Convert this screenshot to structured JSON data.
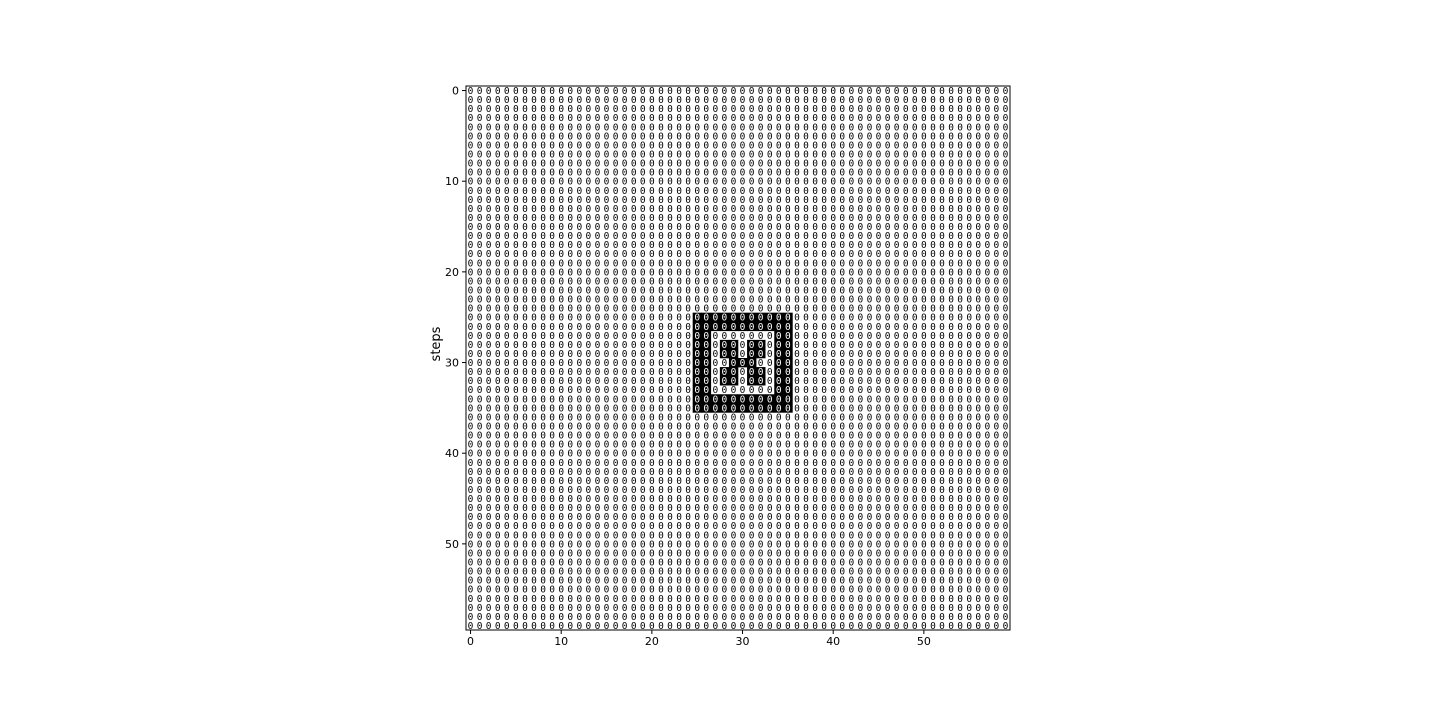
{
  "chart_data": {
    "type": "heatmap",
    "title": "",
    "xlabel": "",
    "ylabel": "steps",
    "grid_size": [
      60,
      60
    ],
    "xlim": [
      -0.5,
      59.5
    ],
    "ylim": [
      59.5,
      -0.5
    ],
    "x_ticks": [
      0,
      10,
      20,
      30,
      40,
      50
    ],
    "y_ticks": [
      0,
      10,
      20,
      30,
      40,
      50
    ],
    "x_tick_labels": [
      "0",
      "10",
      "20",
      "30",
      "40",
      "50"
    ],
    "y_tick_labels": [
      "0",
      "10",
      "20",
      "30",
      "40",
      "50"
    ],
    "default_value": 0,
    "annotate_cells": true,
    "cell_text": "0",
    "colors": {
      "empty": "#ffffff",
      "filled": "#000000"
    },
    "filled_regions": [
      {
        "rows": [
          25,
          26
        ],
        "cols": [
          25,
          35
        ]
      },
      {
        "rows": [
          34,
          35
        ],
        "cols": [
          25,
          35
        ]
      },
      {
        "rows": [
          27,
          33
        ],
        "cols": [
          25,
          26
        ]
      },
      {
        "rows": [
          27,
          33
        ],
        "cols": [
          34,
          35
        ]
      },
      {
        "rows": [
          28,
          29
        ],
        "cols": [
          28,
          29
        ]
      },
      {
        "rows": [
          28,
          29
        ],
        "cols": [
          31,
          32
        ]
      },
      {
        "rows": [
          30,
          30
        ],
        "cols": [
          29,
          31
        ]
      },
      {
        "rows": [
          31,
          32
        ],
        "cols": [
          28,
          29
        ]
      },
      {
        "rows": [
          31,
          32
        ],
        "cols": [
          31,
          32
        ]
      }
    ]
  }
}
